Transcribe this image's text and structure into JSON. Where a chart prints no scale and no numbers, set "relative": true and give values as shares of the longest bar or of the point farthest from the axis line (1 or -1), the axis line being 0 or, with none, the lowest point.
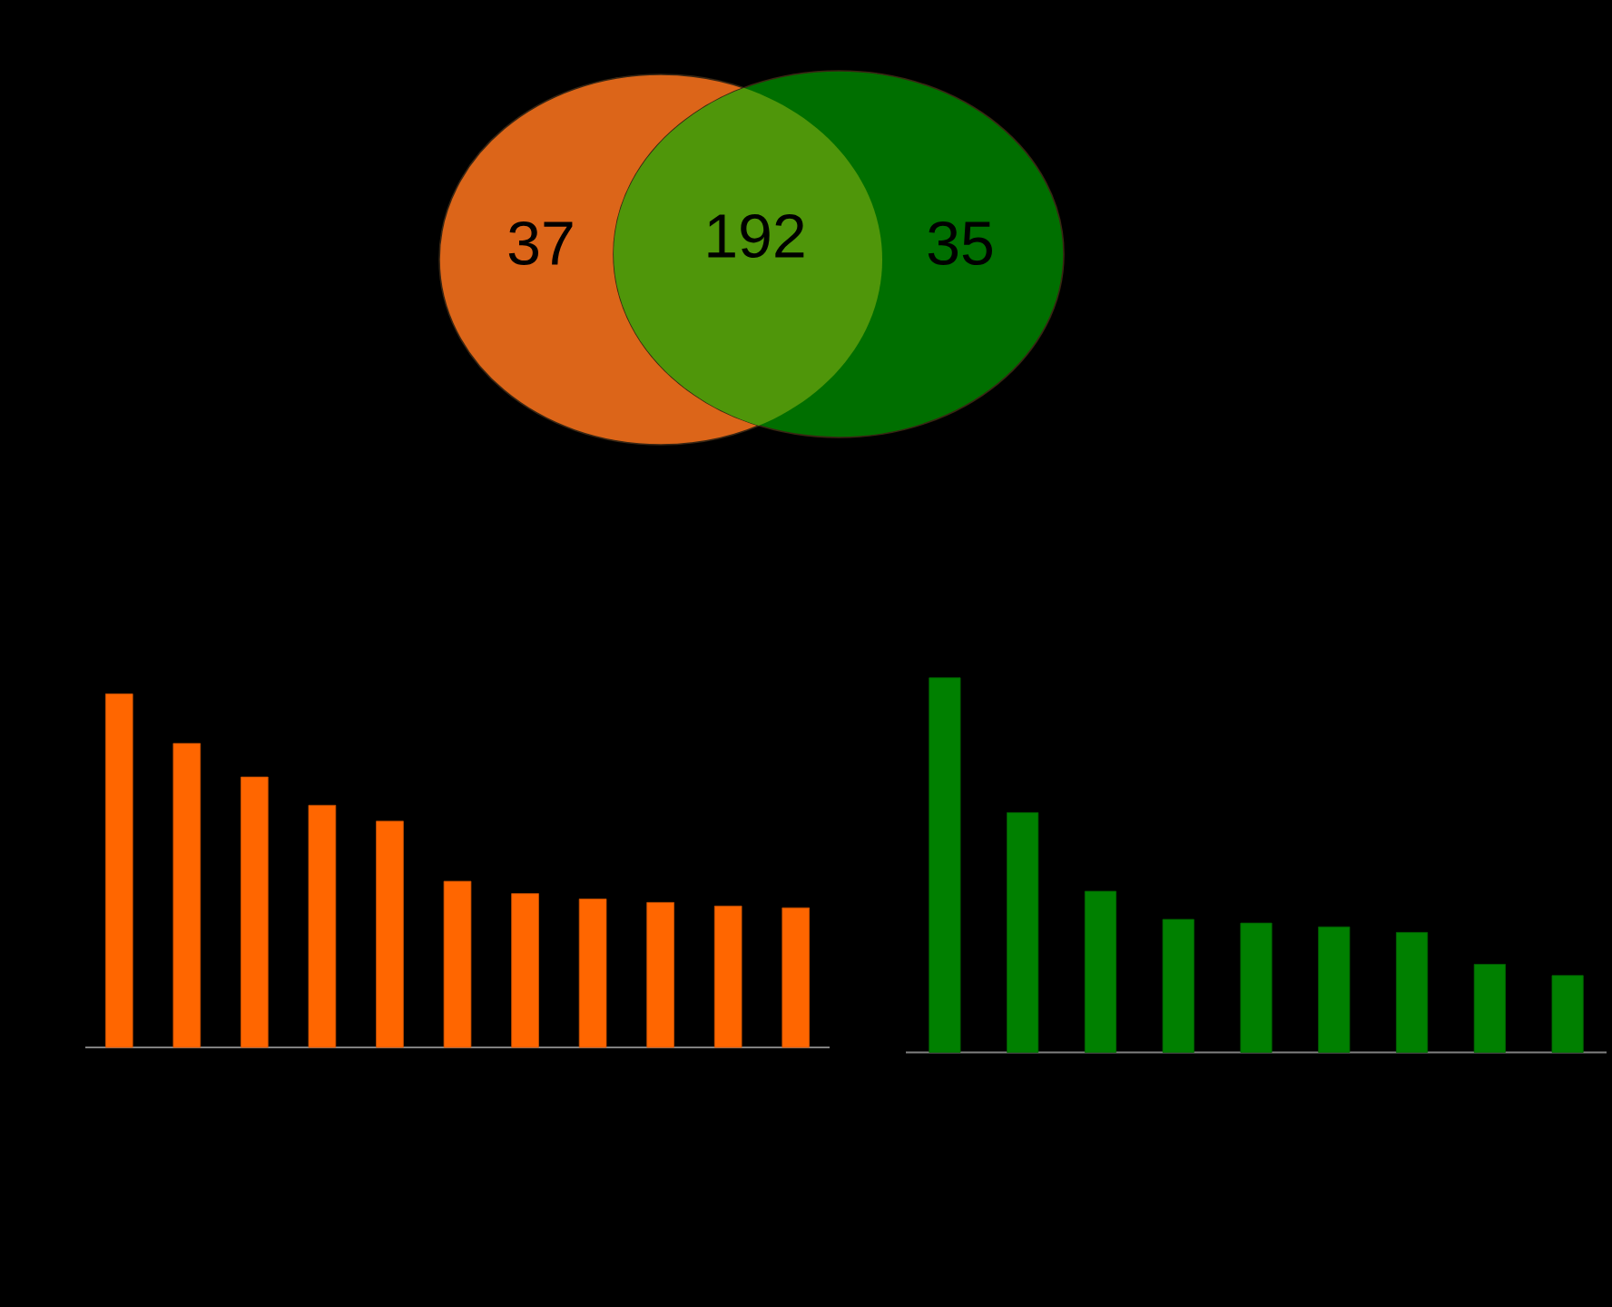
{
  "chart_data": [
    {
      "type": "other",
      "categories": [
        null,
        null,
        null
      ],
      "values": [
        37,
        192,
        35
      ],
      "colors": [
        "#dc6519",
        "#4f960a",
        "#006f00"
      ],
      "data_labels": true
    },
    {
      "type": "bar",
      "relative": true,
      "categories": [
        null,
        null,
        null,
        null,
        null,
        null,
        null,
        null,
        null,
        null,
        null
      ],
      "series": [
        {
          "color": "#ff6600",
          "values": [
            1,
            0.86,
            0.765,
            0.685,
            0.64,
            0.47,
            0.435,
            0.42,
            0.41,
            0.4,
            0.395
          ]
        }
      ]
    },
    {
      "type": "bar",
      "relative": true,
      "categories": [
        null,
        null,
        null,
        null,
        null,
        null,
        null,
        null,
        null
      ],
      "series": [
        {
          "color": "#008000",
          "values": [
            1,
            0.64,
            0.43,
            0.355,
            0.345,
            0.335,
            0.32,
            0.235,
            0.205
          ]
        }
      ]
    }
  ]
}
